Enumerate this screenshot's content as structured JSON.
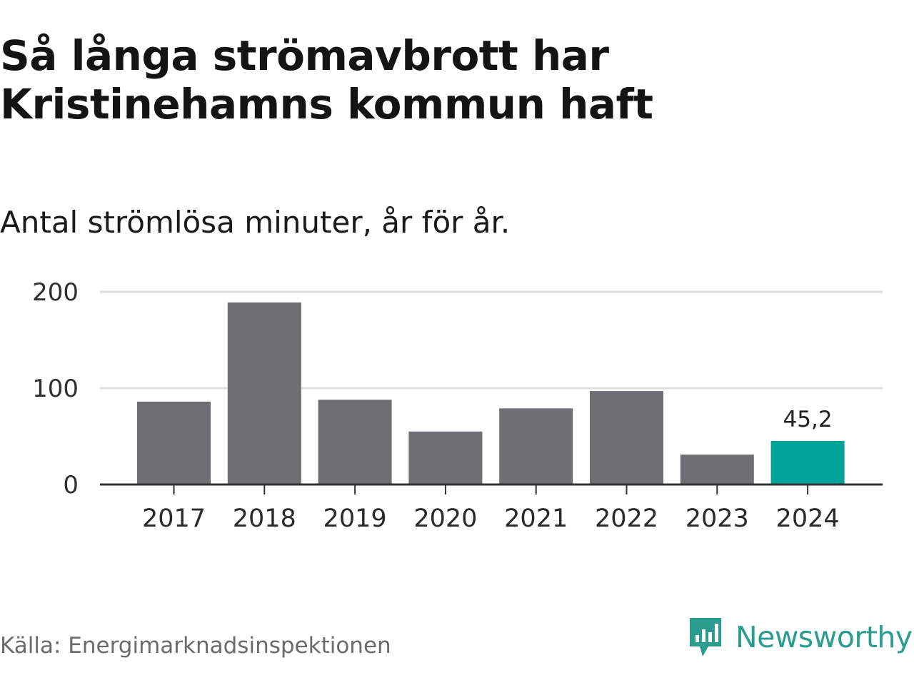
{
  "title": "Så långa strömavbrott har Kristinehamns kommun haft",
  "subtitle": "Antal strömlösa minuter, år för år.",
  "source": "Källa: Energimarknadsinspektionen",
  "brand": {
    "name": "Newsworthy",
    "icon": "newsworthy-logo-icon",
    "color": "#2a9d8f"
  },
  "chart_data": {
    "type": "bar",
    "title": "Så långa strömavbrott har Kristinehamns kommun haft",
    "subtitle": "Antal strömlösa minuter, år för år.",
    "xlabel": "",
    "ylabel": "",
    "categories": [
      "2017",
      "2018",
      "2019",
      "2020",
      "2021",
      "2022",
      "2023",
      "2024"
    ],
    "values": [
      86,
      189,
      88,
      55,
      79,
      97,
      31,
      45.2
    ],
    "ylim": [
      0,
      200
    ],
    "yticks": [
      0,
      100,
      200
    ],
    "ytick_labels": [
      "0",
      "100",
      "200"
    ],
    "grid": true,
    "highlight_index": 7,
    "data_label": "45,2",
    "colors": {
      "bar": "#6f6e73",
      "highlight": "#00a39a",
      "grid": "#dddddd",
      "axis": "#333333"
    }
  }
}
